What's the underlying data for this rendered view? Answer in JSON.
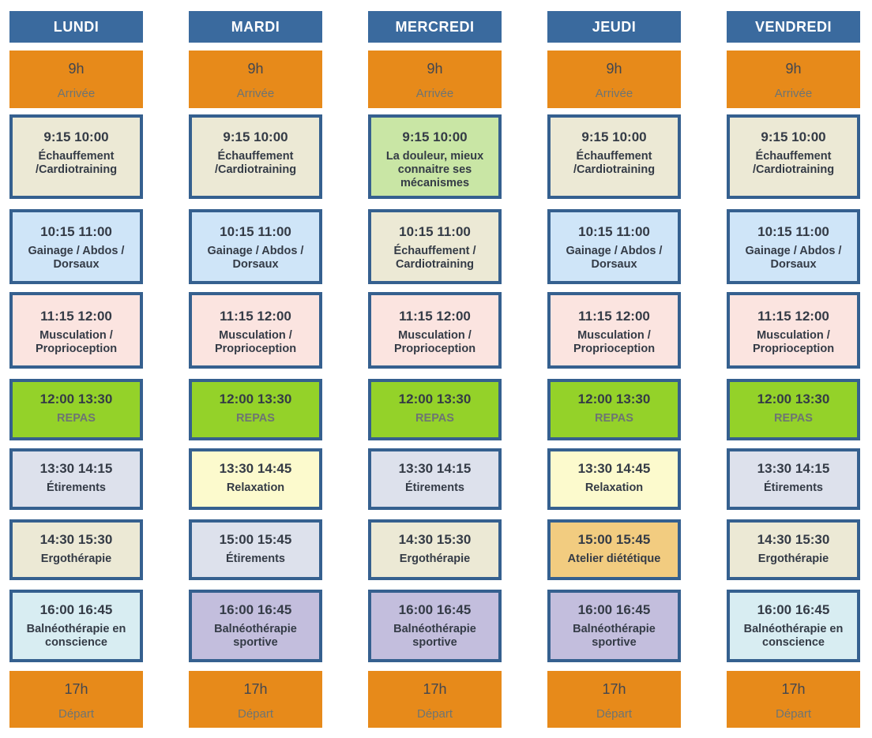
{
  "colors": {
    "header_bg": "#3a6a9e",
    "header_text": "#ffffff",
    "border": "#35608f",
    "dark_text": "#343b46",
    "muted_text": "#6d7473",
    "orange": "#e78a1a",
    "beige": "#ece9d5",
    "light_blue": "#cfe5f8",
    "pink": "#fbe4e0",
    "green": "#94d229",
    "lavender": "#dde1ec",
    "cyan": "#d8edf2",
    "light_green": "#c9e6a5",
    "yellow": "#fcfacd",
    "gold": "#f2cc80",
    "purple": "#c3bedd"
  },
  "days": [
    {
      "name": "LUNDI",
      "cells": [
        {
          "type": "transit",
          "time": "9h",
          "label": "Arrivée",
          "bg": "orange",
          "muted_label": true
        },
        {
          "type": "activity",
          "time": "9:15 10:00",
          "label": "Échauffement /Cardiotraining",
          "bg": "beige",
          "muted_label": false
        },
        {
          "type": "activity",
          "time": "10:15 11:00",
          "label": "Gainage / Abdos / Dorsaux",
          "bg": "light_blue",
          "muted_label": false
        },
        {
          "type": "activity",
          "time": "11:15 12:00",
          "label": "Musculation / Proprioception",
          "bg": "pink",
          "muted_label": false
        },
        {
          "type": "activity",
          "time": "12:00 13:30",
          "label": "REPAS",
          "bg": "green",
          "muted_label": true
        },
        {
          "type": "activity",
          "time": "13:30 14:15",
          "label": "Étirements",
          "bg": "lavender",
          "muted_label": false
        },
        {
          "type": "activity",
          "time": "14:30 15:30",
          "label": "Ergothérapie",
          "bg": "beige",
          "muted_label": false
        },
        {
          "type": "activity",
          "time": "16:00 16:45",
          "label": "Balnéothérapie en conscience",
          "bg": "cyan",
          "muted_label": false
        },
        {
          "type": "transit",
          "time": "17h",
          "label": "Départ",
          "bg": "orange",
          "muted_label": true
        }
      ]
    },
    {
      "name": "MARDI",
      "cells": [
        {
          "type": "transit",
          "time": "9h",
          "label": "Arrivée",
          "bg": "orange",
          "muted_label": true
        },
        {
          "type": "activity",
          "time": "9:15 10:00",
          "label": "Échauffement /Cardiotraining",
          "bg": "beige",
          "muted_label": false
        },
        {
          "type": "activity",
          "time": "10:15 11:00",
          "label": "Gainage / Abdos / Dorsaux",
          "bg": "light_blue",
          "muted_label": false
        },
        {
          "type": "activity",
          "time": "11:15 12:00",
          "label": "Musculation / Proprioception",
          "bg": "pink",
          "muted_label": false
        },
        {
          "type": "activity",
          "time": "12:00 13:30",
          "label": "REPAS",
          "bg": "green",
          "muted_label": true
        },
        {
          "type": "activity",
          "time": "13:30 14:45",
          "label": "Relaxation",
          "bg": "yellow",
          "muted_label": false
        },
        {
          "type": "activity",
          "time": "15:00 15:45",
          "label": "Étirements",
          "bg": "lavender",
          "muted_label": false
        },
        {
          "type": "activity",
          "time": "16:00 16:45",
          "label": "Balnéothérapie sportive",
          "bg": "purple",
          "muted_label": false
        },
        {
          "type": "transit",
          "time": "17h",
          "label": "Départ",
          "bg": "orange",
          "muted_label": true
        }
      ]
    },
    {
      "name": "MERCREDI",
      "cells": [
        {
          "type": "transit",
          "time": "9h",
          "label": "Arrivée",
          "bg": "orange",
          "muted_label": true
        },
        {
          "type": "activity",
          "time": "9:15 10:00",
          "label": "La douleur, mieux connaitre ses mécanismes",
          "bg": "light_green",
          "muted_label": false
        },
        {
          "type": "activity",
          "time": "10:15 11:00",
          "label": "Échauffement / Cardiotraining",
          "bg": "beige",
          "muted_label": false
        },
        {
          "type": "activity",
          "time": "11:15 12:00",
          "label": "Musculation / Proprioception",
          "bg": "pink",
          "muted_label": false
        },
        {
          "type": "activity",
          "time": "12:00 13:30",
          "label": "REPAS",
          "bg": "green",
          "muted_label": true
        },
        {
          "type": "activity",
          "time": "13:30 14:15",
          "label": "Étirements",
          "bg": "lavender",
          "muted_label": false
        },
        {
          "type": "activity",
          "time": "14:30 15:30",
          "label": "Ergothérapie",
          "bg": "beige",
          "muted_label": false
        },
        {
          "type": "activity",
          "time": "16:00 16:45",
          "label": "Balnéothérapie sportive",
          "bg": "purple",
          "muted_label": false
        },
        {
          "type": "transit",
          "time": "17h",
          "label": "Départ",
          "bg": "orange",
          "muted_label": true
        }
      ]
    },
    {
      "name": "JEUDI",
      "cells": [
        {
          "type": "transit",
          "time": "9h",
          "label": "Arrivée",
          "bg": "orange",
          "muted_label": true
        },
        {
          "type": "activity",
          "time": "9:15 10:00",
          "label": "Échauffement /Cardiotraining",
          "bg": "beige",
          "muted_label": false
        },
        {
          "type": "activity",
          "time": "10:15 11:00",
          "label": "Gainage / Abdos / Dorsaux",
          "bg": "light_blue",
          "muted_label": false
        },
        {
          "type": "activity",
          "time": "11:15 12:00",
          "label": "Musculation / Proprioception",
          "bg": "pink",
          "muted_label": false
        },
        {
          "type": "activity",
          "time": "12:00 13:30",
          "label": "REPAS",
          "bg": "green",
          "muted_label": true
        },
        {
          "type": "activity",
          "time": "13:30 14:45",
          "label": "Relaxation",
          "bg": "yellow",
          "muted_label": false
        },
        {
          "type": "activity",
          "time": "15:00 15:45",
          "label": "Atelier diététique",
          "bg": "gold",
          "muted_label": false
        },
        {
          "type": "activity",
          "time": "16:00 16:45",
          "label": "Balnéothérapie sportive",
          "bg": "purple",
          "muted_label": false
        },
        {
          "type": "transit",
          "time": "17h",
          "label": "Départ",
          "bg": "orange",
          "muted_label": true
        }
      ]
    },
    {
      "name": "VENDREDI",
      "cells": [
        {
          "type": "transit",
          "time": "9h",
          "label": "Arrivée",
          "bg": "orange",
          "muted_label": true
        },
        {
          "type": "activity",
          "time": "9:15 10:00",
          "label": "Échauffement /Cardiotraining",
          "bg": "beige",
          "muted_label": false
        },
        {
          "type": "activity",
          "time": "10:15 11:00",
          "label": "Gainage / Abdos / Dorsaux",
          "bg": "light_blue",
          "muted_label": false
        },
        {
          "type": "activity",
          "time": "11:15 12:00",
          "label": "Musculation / Proprioception",
          "bg": "pink",
          "muted_label": false
        },
        {
          "type": "activity",
          "time": "12:00 13:30",
          "label": "REPAS",
          "bg": "green",
          "muted_label": true
        },
        {
          "type": "activity",
          "time": "13:30 14:15",
          "label": "Étirements",
          "bg": "lavender",
          "muted_label": false
        },
        {
          "type": "activity",
          "time": "14:30 15:30",
          "label": "Ergothérapie",
          "bg": "beige",
          "muted_label": false
        },
        {
          "type": "activity",
          "time": "16:00 16:45",
          "label": "Balnéothérapie en conscience",
          "bg": "cyan",
          "muted_label": false
        },
        {
          "type": "transit",
          "time": "17h",
          "label": "Départ",
          "bg": "orange",
          "muted_label": true
        }
      ]
    }
  ]
}
